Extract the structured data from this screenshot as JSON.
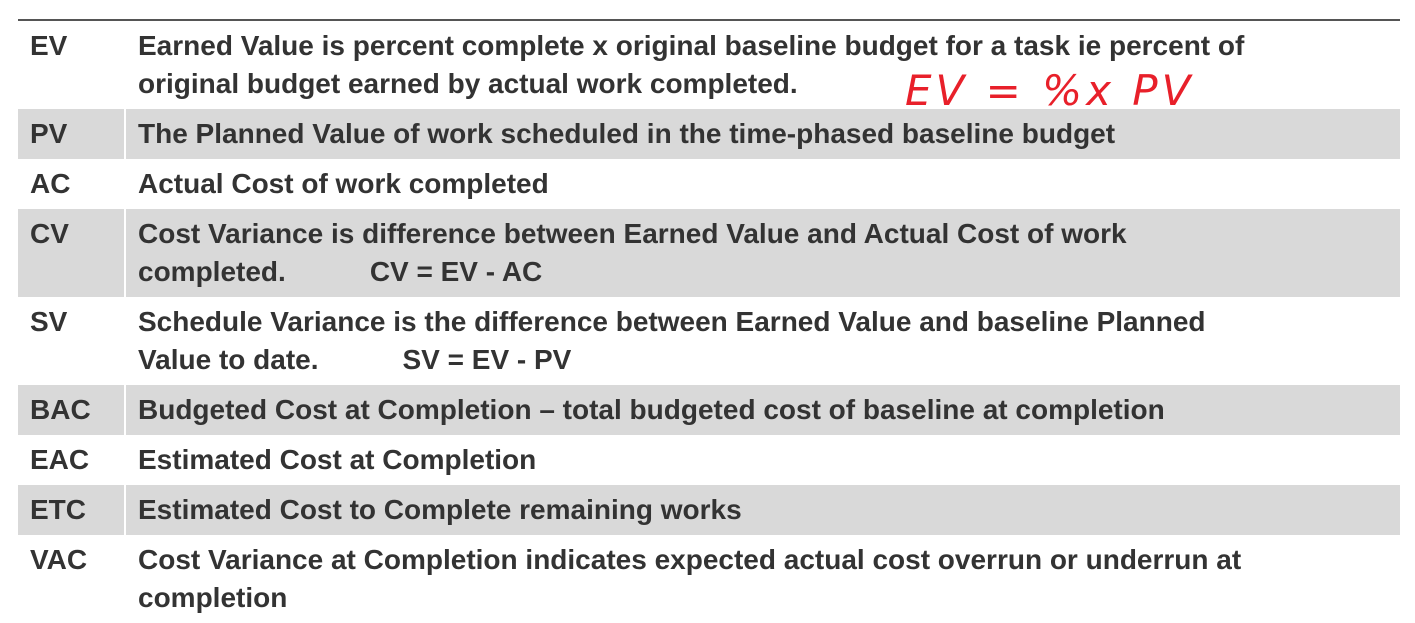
{
  "table": {
    "rows": [
      {
        "term": "EV",
        "lines": [
          "Earned Value is percent complete x original baseline budget for a task ie percent of",
          "original budget earned by actual work completed."
        ]
      },
      {
        "term": "PV",
        "lines": [
          "The Planned Value of work scheduled in the time-phased baseline budget"
        ]
      },
      {
        "term": "AC",
        "lines": [
          "Actual Cost of work completed"
        ]
      },
      {
        "term": "CV",
        "lines": [
          "Cost Variance is difference between Earned Value and Actual Cost of work",
          "completed."
        ],
        "formula": "CV = EV - AC"
      },
      {
        "term": "SV",
        "lines": [
          "Schedule Variance is the difference between Earned Value and baseline Planned",
          "Value to date."
        ],
        "formula": "SV = EV - PV"
      },
      {
        "term": "BAC",
        "lines": [
          "Budgeted Cost at Completion – total budgeted cost of baseline at completion"
        ]
      },
      {
        "term": "EAC",
        "lines": [
          "Estimated Cost at Completion"
        ]
      },
      {
        "term": "ETC",
        "lines": [
          "Estimated Cost to Complete remaining works"
        ]
      },
      {
        "term": "VAC",
        "lines": [
          "Cost Variance at Completion indicates expected actual cost overrun or underrun at",
          "completion"
        ]
      }
    ]
  },
  "annotation": "EV = %x PV"
}
